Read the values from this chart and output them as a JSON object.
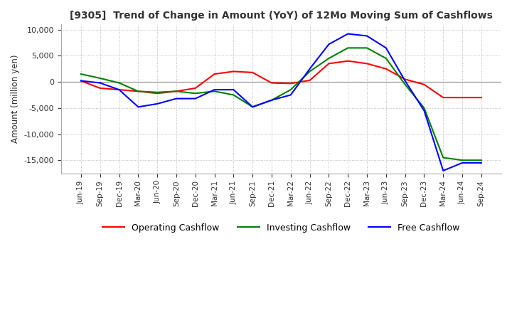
{
  "title": "[9305]  Trend of Change in Amount (YoY) of 12Mo Moving Sum of Cashflows",
  "ylabel": "Amount (million yen)",
  "ylim": [
    -17500,
    11000
  ],
  "yticks": [
    -15000,
    -10000,
    -5000,
    0,
    5000,
    10000
  ],
  "x_labels": [
    "Jun-19",
    "Sep-19",
    "Dec-19",
    "Mar-20",
    "Jun-20",
    "Sep-20",
    "Dec-20",
    "Mar-21",
    "Jun-21",
    "Sep-21",
    "Dec-21",
    "Mar-22",
    "Jun-22",
    "Sep-22",
    "Dec-22",
    "Mar-23",
    "Jun-23",
    "Sep-23",
    "Dec-23",
    "Mar-24",
    "Jun-24",
    "Sep-24"
  ],
  "operating": [
    200,
    -1200,
    -1500,
    -1800,
    -2200,
    -1800,
    -1200,
    1500,
    2000,
    1800,
    -200,
    -300,
    300,
    3500,
    4000,
    3500,
    2500,
    500,
    -500,
    -3000,
    -3000,
    -3000
  ],
  "investing": [
    1500,
    700,
    -200,
    -1800,
    -2000,
    -1800,
    -2200,
    -1800,
    -2500,
    -4800,
    -3500,
    -1500,
    2000,
    4500,
    6500,
    6500,
    4500,
    -500,
    -5000,
    -14500,
    -15000,
    -15000
  ],
  "free": [
    200,
    -200,
    -1500,
    -4800,
    -4200,
    -3200,
    -3200,
    -1500,
    -1500,
    -4800,
    -3500,
    -2500,
    2500,
    7200,
    9200,
    8800,
    6500,
    200,
    -5500,
    -17000,
    -15500,
    -15500
  ],
  "operating_color": "#ff0000",
  "investing_color": "#008000",
  "free_color": "#0000ff",
  "bg_color": "#ffffff",
  "grid_color": "#aaaaaa"
}
